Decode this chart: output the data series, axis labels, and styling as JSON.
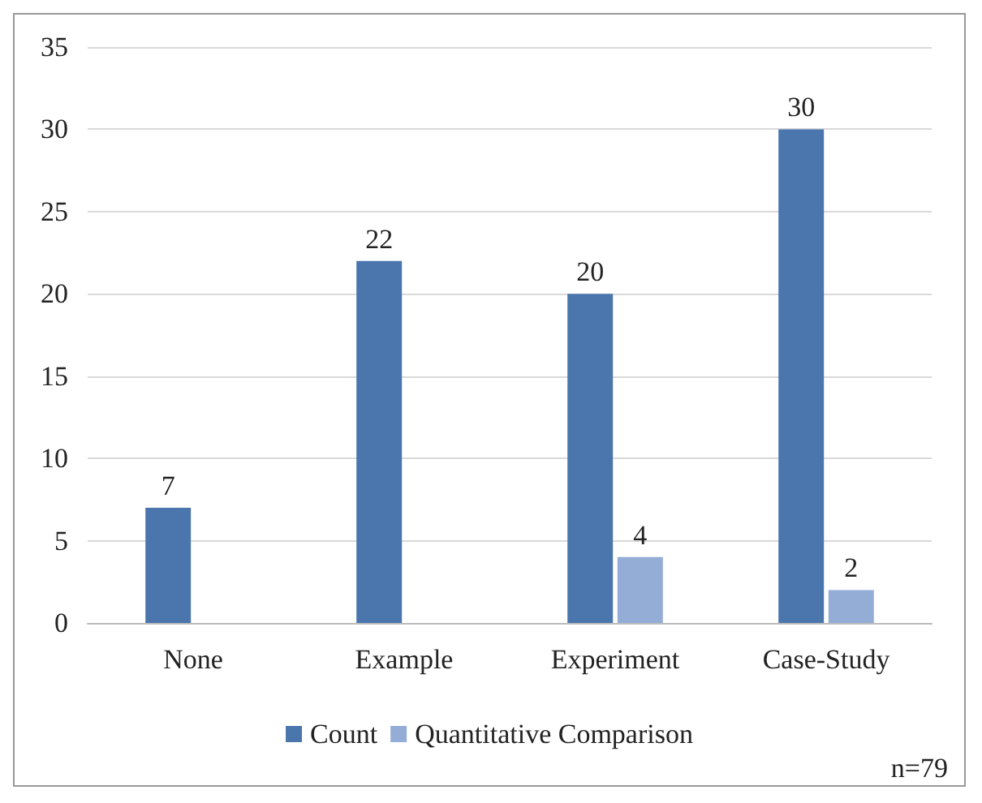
{
  "chart_data": {
    "type": "bar",
    "categories": [
      "None",
      "Example",
      "Experiment",
      "Case-Study"
    ],
    "series": [
      {
        "name": "Count",
        "color": "#4a76ad",
        "values": [
          7,
          22,
          20,
          30
        ]
      },
      {
        "name": "Quantitative Comparison",
        "color": "#94add6",
        "values": [
          null,
          null,
          4,
          2
        ]
      }
    ],
    "ylim": [
      0,
      35
    ],
    "yticks": [
      0,
      5,
      10,
      15,
      20,
      25,
      30,
      35
    ],
    "grid": "y",
    "legend": "bottom",
    "data_labels": true,
    "annotations": [
      "n=79"
    ]
  }
}
